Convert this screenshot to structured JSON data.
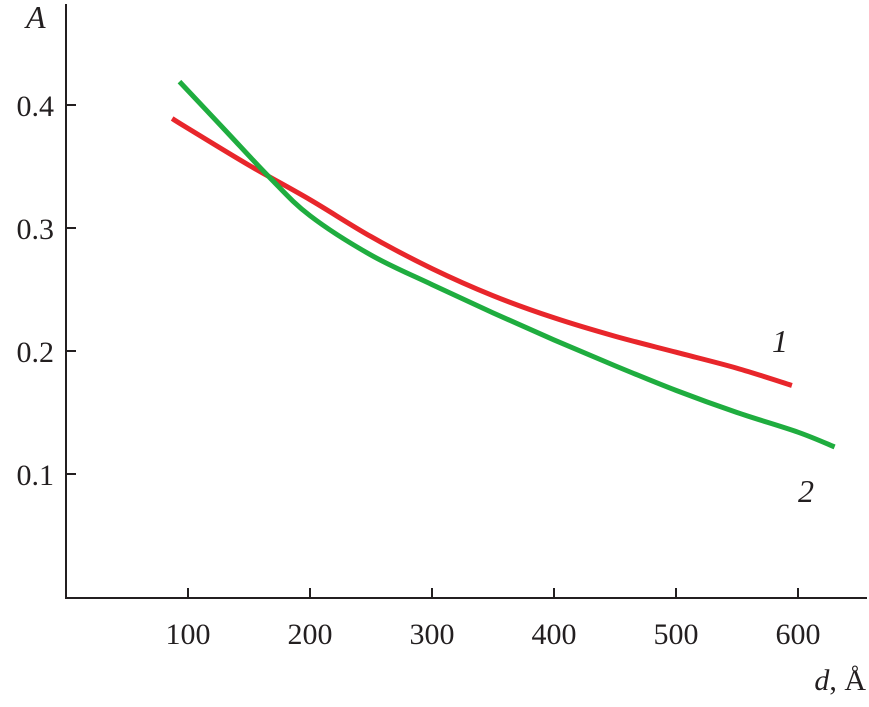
{
  "chart_data": {
    "type": "line",
    "title": "",
    "xlabel_var": "d",
    "xlabel_unit": ", Å",
    "ylabel": "A",
    "xlim": [
      0,
      656
    ],
    "ylim": [
      0,
      0.485
    ],
    "grid": false,
    "x_ticks": [
      100,
      200,
      300,
      400,
      500,
      600
    ],
    "x_tick_labels": [
      "100",
      "200",
      "300",
      "400",
      "500",
      "600"
    ],
    "y_ticks": [
      0.1,
      0.2,
      0.3,
      0.4
    ],
    "y_tick_labels": [
      "0.1",
      "0.2",
      "0.3",
      "0.4"
    ],
    "series": [
      {
        "name": "1",
        "color": "#e8262b",
        "x": [
          87,
          100,
          150,
          200,
          250,
          300,
          350,
          400,
          450,
          500,
          550,
          595
        ],
        "y": [
          0.389,
          0.381,
          0.351,
          0.323,
          0.293,
          0.267,
          0.245,
          0.227,
          0.212,
          0.199,
          0.186,
          0.172
        ]
      },
      {
        "name": "2",
        "color": "#1fad3f",
        "x": [
          93,
          130,
          167,
          200,
          250,
          300,
          350,
          400,
          450,
          500,
          550,
          600,
          630
        ],
        "y": [
          0.419,
          0.38,
          0.341,
          0.31,
          0.278,
          0.254,
          0.231,
          0.209,
          0.188,
          0.168,
          0.15,
          0.134,
          0.122
        ]
      }
    ]
  }
}
